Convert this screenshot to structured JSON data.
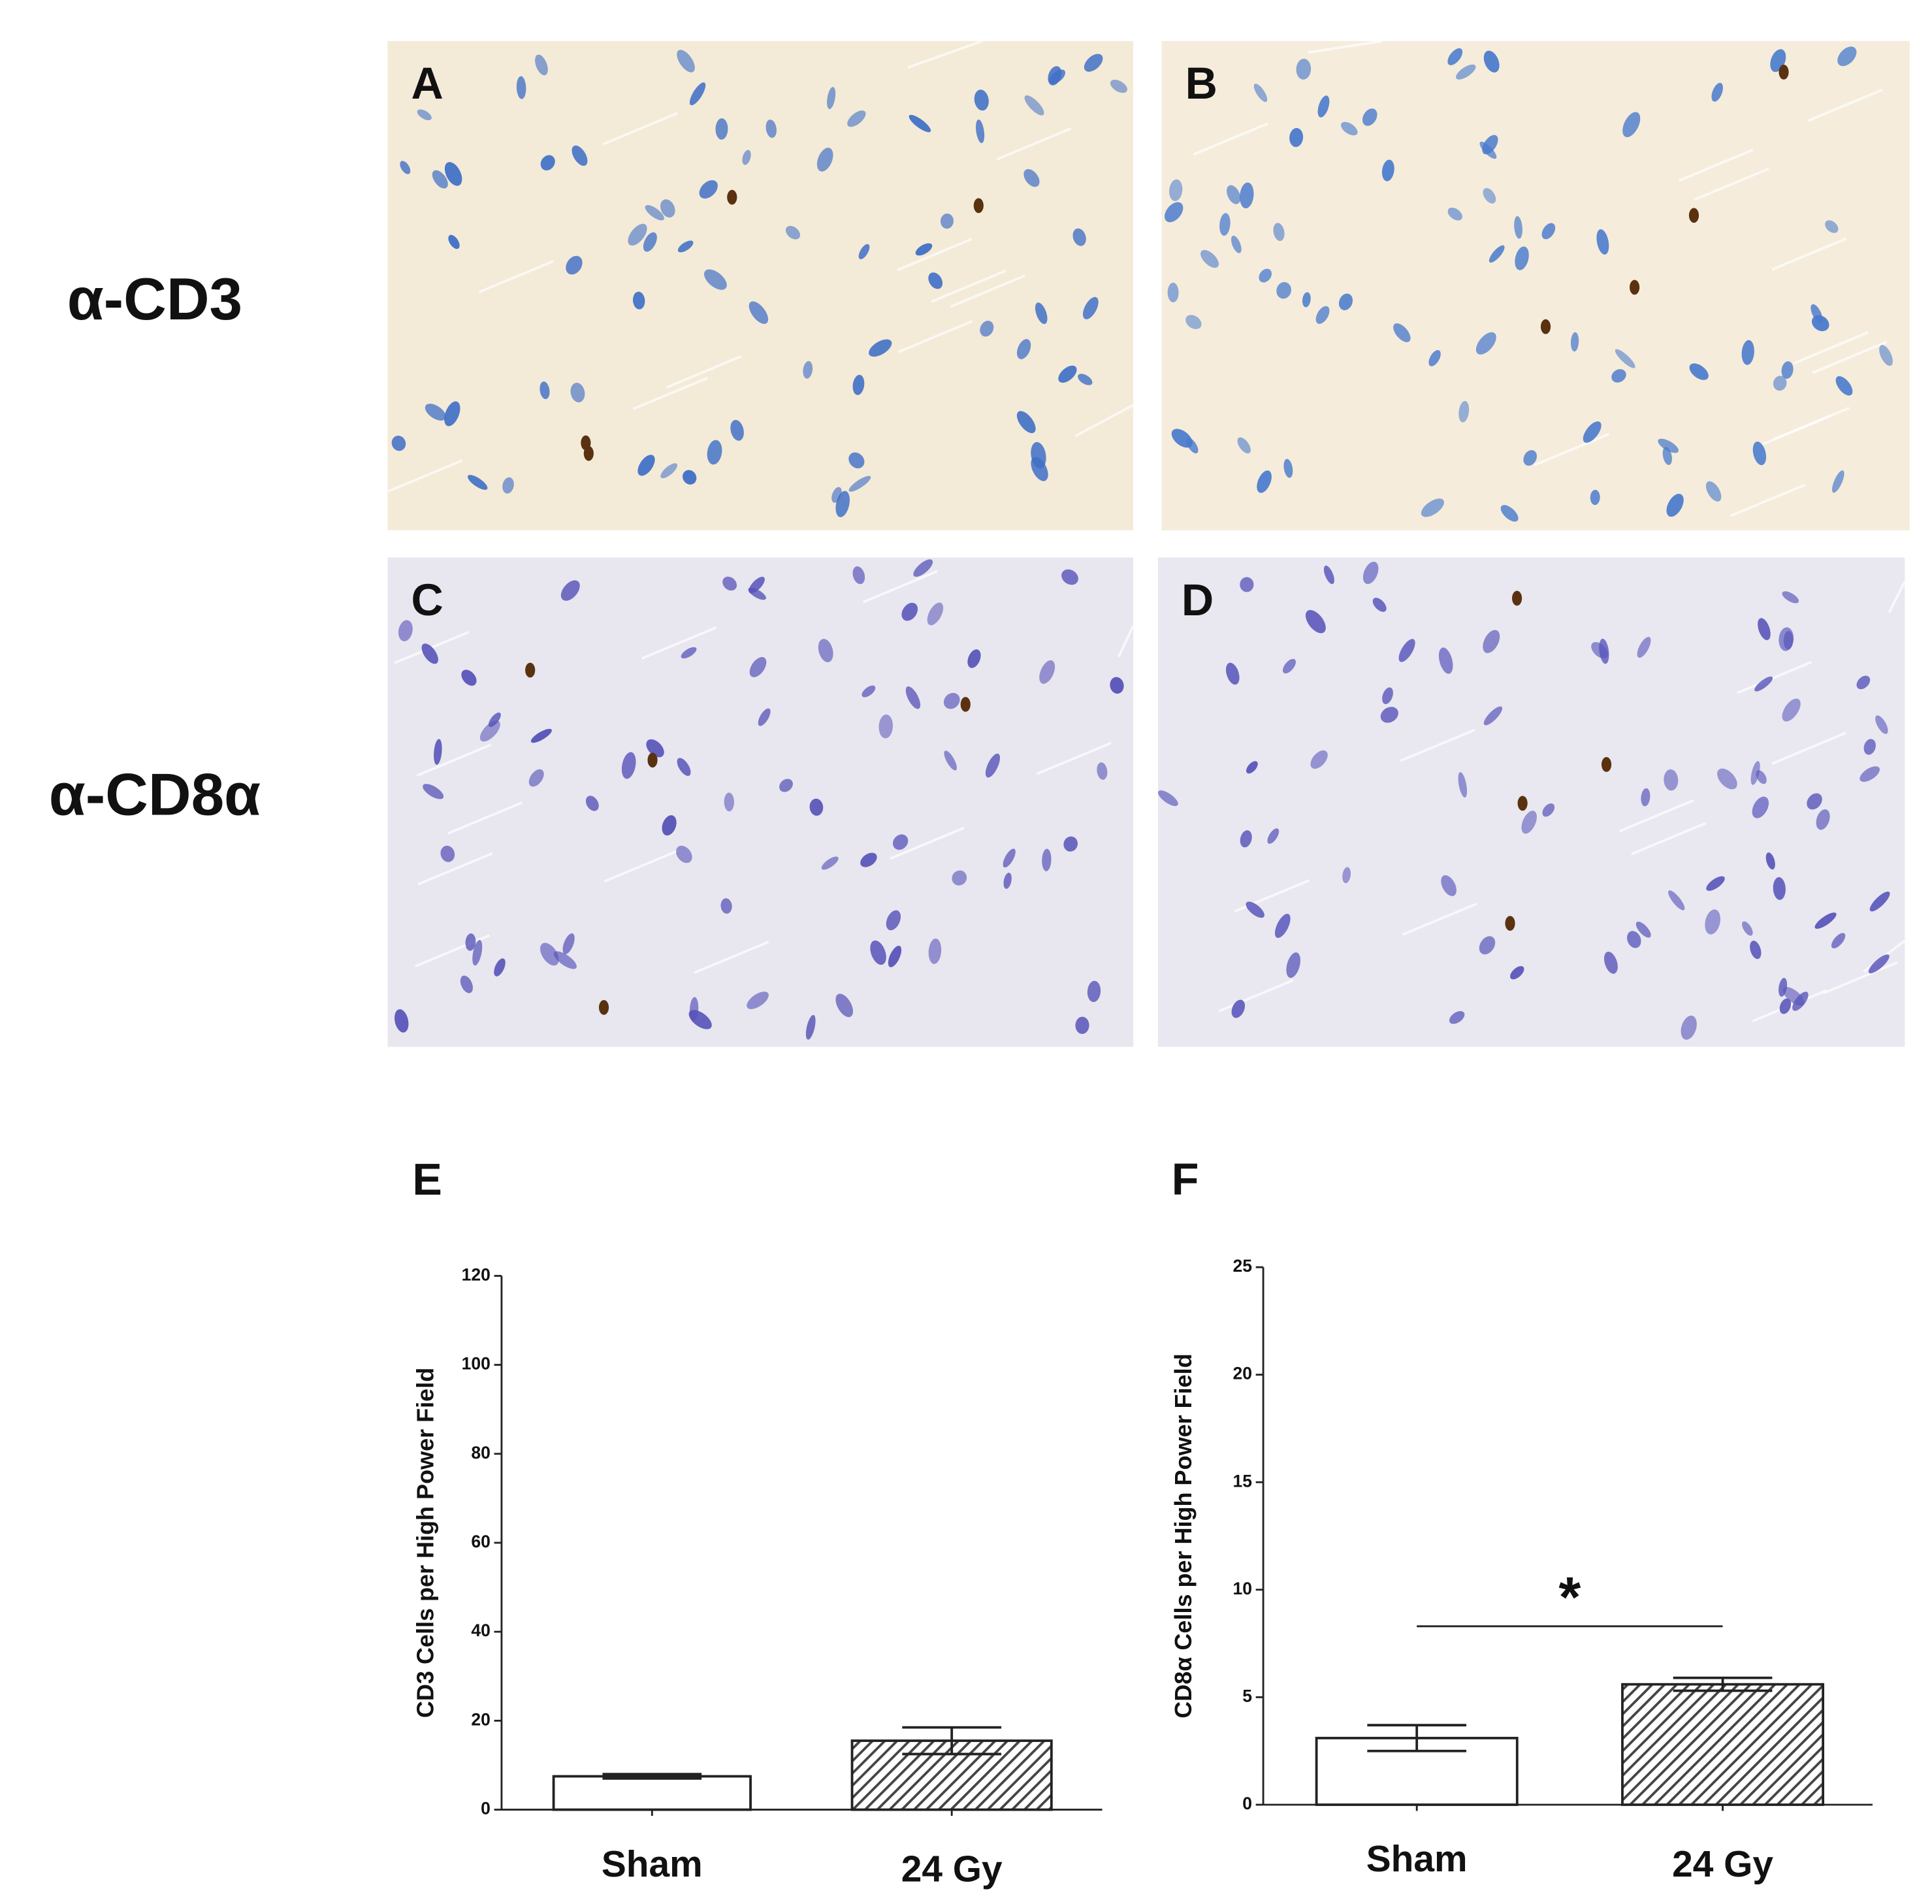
{
  "panels": {
    "letters": [
      "A",
      "B",
      "C",
      "D"
    ],
    "rows": [
      "α-CD3",
      "α-CD8α"
    ]
  },
  "chart_data": [
    {
      "type": "bar",
      "panel_label": "E",
      "y_label": "CD3 Cells per High Power Field",
      "categories": [
        "Sham",
        "24 Gy"
      ],
      "values": [
        7.5,
        15.5
      ],
      "errors": [
        0.5,
        3
      ],
      "colors": [
        "#ffffff",
        "#555555"
      ],
      "hatch": [
        false,
        true
      ],
      "ylim": [
        0,
        120
      ],
      "yticks": [
        0,
        20,
        40,
        60,
        80,
        100,
        120
      ]
    },
    {
      "type": "bar",
      "panel_label": "F",
      "y_label": "CD8α Cells per High Power Field",
      "categories": [
        "Sham",
        "24 Gy"
      ],
      "values": [
        3.1,
        5.6
      ],
      "errors": [
        0.6,
        0.3
      ],
      "colors": [
        "#ffffff",
        "#555555"
      ],
      "hatch": [
        false,
        true
      ],
      "ylim": [
        0,
        25
      ],
      "yticks": [
        0,
        5,
        10,
        15,
        20,
        25
      ],
      "annotation": "*",
      "significance_y": 8.3
    }
  ]
}
